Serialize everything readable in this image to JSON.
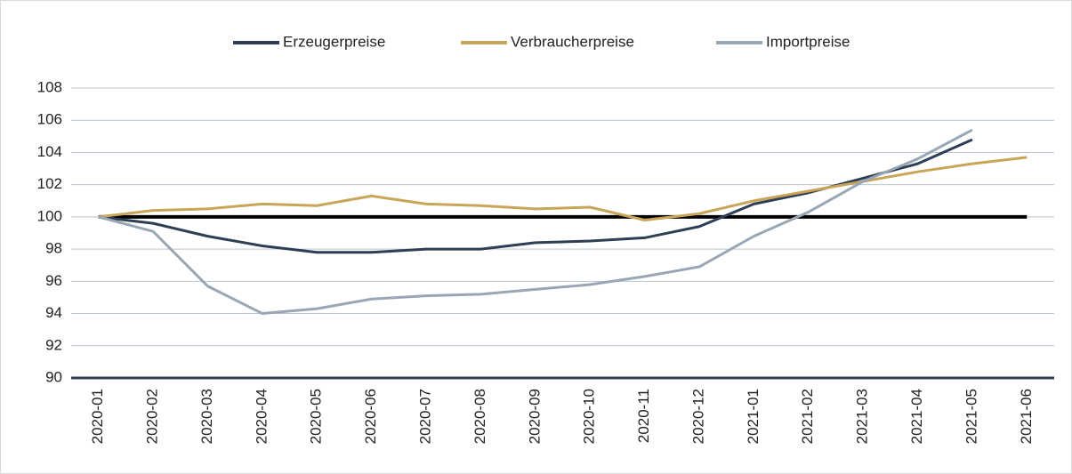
{
  "chart_data": {
    "type": "line",
    "categories": [
      "2020-01",
      "2020-02",
      "2020-03",
      "2020-04",
      "2020-05",
      "2020-06",
      "2020-07",
      "2020-08",
      "2020-09",
      "2020-10",
      "2020-11",
      "2020-12",
      "2021-01",
      "2021-02",
      "2021-03",
      "2021-04",
      "2021-05",
      "2021-06"
    ],
    "series": [
      {
        "name": "Erzeugerpreise",
        "color": "#2e3e55",
        "values": [
          100,
          99.6,
          98.8,
          98.2,
          97.8,
          97.8,
          98.0,
          98.0,
          98.4,
          98.5,
          98.7,
          99.4,
          100.8,
          101.5,
          102.4,
          103.3,
          104.8,
          null
        ]
      },
      {
        "name": "Verbraucherpreise",
        "color": "#c9a55a",
        "values": [
          100,
          100.4,
          100.5,
          100.8,
          100.7,
          101.3,
          100.8,
          100.7,
          100.5,
          100.6,
          99.8,
          100.2,
          101.0,
          101.6,
          102.2,
          102.8,
          103.3,
          103.7
        ]
      },
      {
        "name": "Importpreise",
        "color": "#99a7b5",
        "values": [
          100,
          99.1,
          95.7,
          94.0,
          94.3,
          94.9,
          95.1,
          95.2,
          95.5,
          95.8,
          96.3,
          96.9,
          98.8,
          100.3,
          102.2,
          103.6,
          105.4,
          null
        ]
      }
    ],
    "reference_line": 100,
    "reference_color": "#000000",
    "ylim": [
      90,
      108
    ],
    "yticks": [
      90,
      92,
      94,
      96,
      98,
      100,
      102,
      104,
      106,
      108
    ],
    "grid": true,
    "legend": "top"
  }
}
